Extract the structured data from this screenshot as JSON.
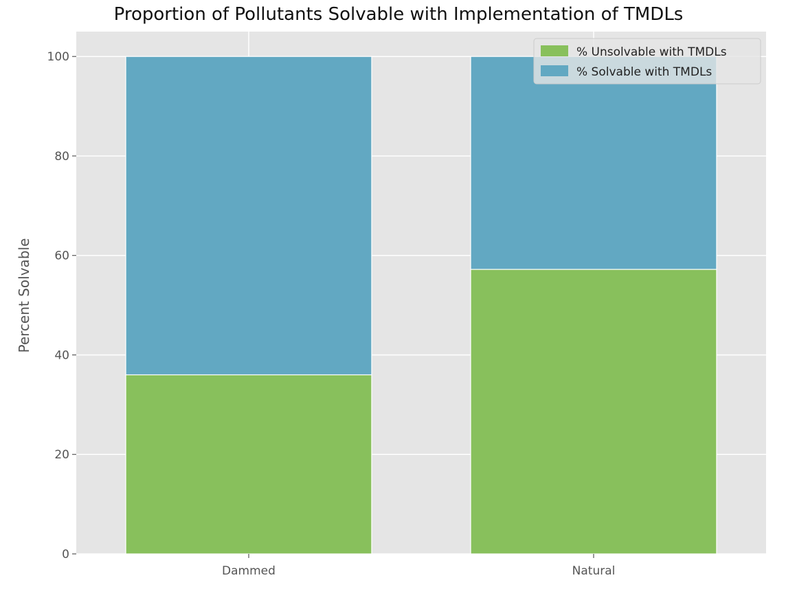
{
  "chart_data": {
    "type": "bar",
    "stacked": true,
    "title": "Proportion of Pollutants Solvable with Implementation of TMDLs",
    "xlabel": "",
    "ylabel": "Percent Solvable",
    "categories": [
      "Dammed",
      "Natural"
    ],
    "series": [
      {
        "name": "% Unsolvable with TMDLs",
        "values": [
          36,
          57.2
        ],
        "color": "#88c05c"
      },
      {
        "name": "% Solvable with TMDLs",
        "values": [
          64,
          42.8
        ],
        "color": "#62a8c2"
      }
    ],
    "ylim": [
      0,
      105
    ],
    "yticks": [
      0,
      20,
      40,
      60,
      80,
      100
    ],
    "grid": true,
    "legend_position": "top-right",
    "background_color": "#e5e5e5"
  }
}
